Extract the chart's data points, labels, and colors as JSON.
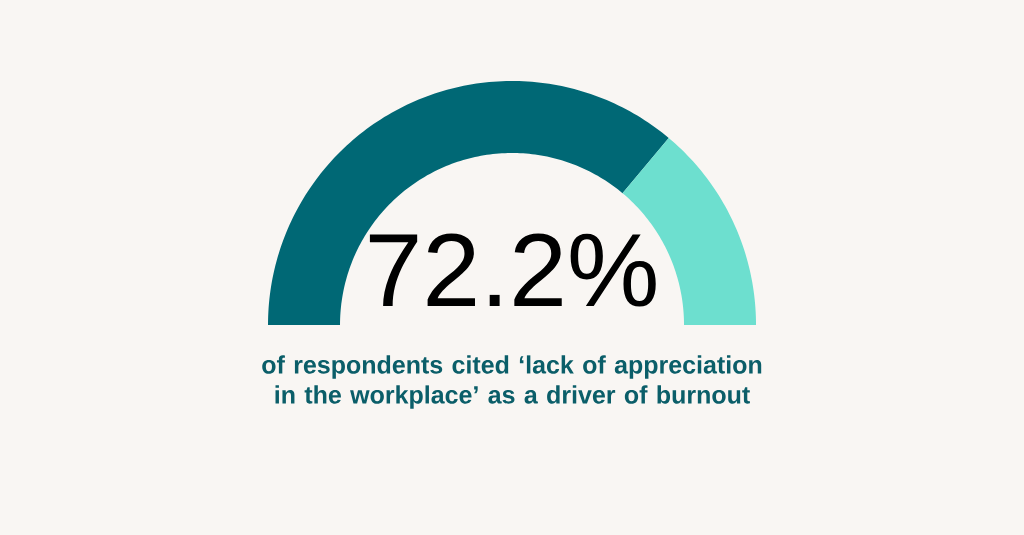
{
  "chart_data": {
    "type": "donut",
    "categories": [
      null,
      null
    ],
    "values": [
      72.2,
      27.8
    ],
    "colors": [
      "#006875",
      "#6ddfcf"
    ],
    "value_labels": [
      "72.2%",
      null
    ],
    "annotations": [
      "of respondents cited ‘lack of appreciation in the workplace’ as a driver of burnout"
    ]
  }
}
